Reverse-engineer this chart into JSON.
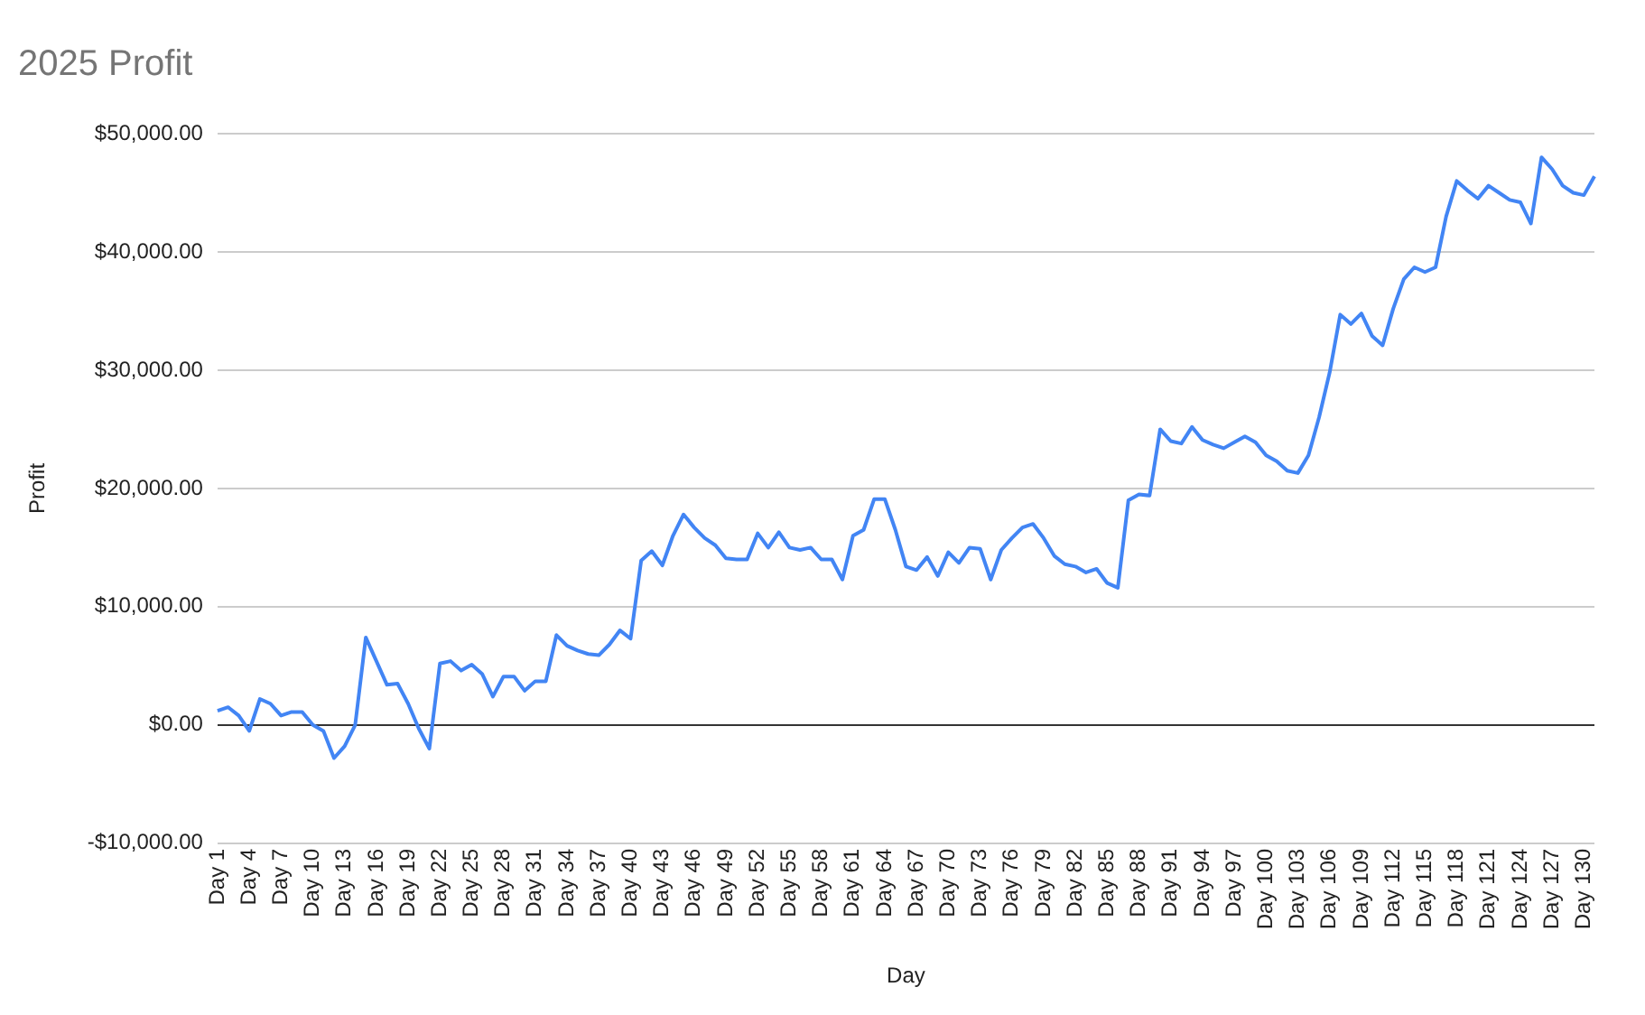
{
  "chart_data": {
    "type": "line",
    "title": "2025 Profit",
    "xlabel": "Day",
    "ylabel": "Profit",
    "categories": [
      "Day 1",
      null,
      null,
      "Day 4",
      null,
      null,
      "Day 7",
      null,
      null,
      "Day 10",
      null,
      null,
      "Day 13",
      null,
      null,
      "Day 16",
      null,
      null,
      "Day 19",
      null,
      null,
      "Day 22",
      null,
      null,
      "Day 25",
      null,
      null,
      "Day 28",
      null,
      null,
      "Day 31",
      null,
      null,
      "Day 34",
      null,
      null,
      "Day 37",
      null,
      null,
      "Day 40",
      null,
      null,
      "Day 43",
      null,
      null,
      "Day 46",
      null,
      null,
      "Day 49",
      null,
      null,
      "Day 52",
      null,
      null,
      "Day 55",
      null,
      null,
      "Day 58",
      null,
      null,
      "Day 61",
      null,
      null,
      "Day 64",
      null,
      null,
      "Day 67",
      null,
      null,
      "Day 70",
      null,
      null,
      "Day 73",
      null,
      null,
      "Day 76",
      null,
      null,
      "Day 79",
      null,
      null,
      "Day 82",
      null,
      null,
      "Day 85",
      null,
      null,
      "Day 88",
      null,
      null,
      "Day 91",
      null,
      null,
      "Day 94",
      null,
      null,
      "Day 97",
      null,
      null,
      "Day 100",
      null,
      null,
      "Day 103",
      null,
      null,
      "Day 106",
      null,
      null,
      "Day 109",
      null,
      null,
      "Day 112",
      null,
      null,
      "Day 115",
      null,
      null,
      "Day 118",
      null,
      null,
      "Day 121",
      null,
      null,
      "Day 124",
      null,
      null,
      "Day 127",
      null,
      null,
      "Day 130",
      null
    ],
    "series": [
      {
        "color": "#4285f4",
        "values": [
          1200,
          1500,
          800,
          -500,
          2200,
          1800,
          800,
          1100,
          1100,
          0,
          -500,
          -2800,
          -1800,
          0,
          7400,
          5400,
          3400,
          3500,
          1800,
          -300,
          -2000,
          5200,
          5400,
          4600,
          5100,
          4300,
          2400,
          4100,
          4100,
          2900,
          3700,
          3700,
          7600,
          6700,
          6300,
          6000,
          5900,
          6800,
          8000,
          7300,
          13900,
          14700,
          13500,
          16000,
          17800,
          16700,
          15800,
          15200,
          14100,
          14000,
          14000,
          16200,
          15000,
          16300,
          15000,
          14800,
          15000,
          14000,
          14000,
          12300,
          16000,
          16500,
          19100,
          19100,
          16500,
          13400,
          13100,
          14200,
          12600,
          14600,
          13700,
          15000,
          14900,
          12300,
          14800,
          15800,
          16700,
          17000,
          15800,
          14300,
          13600,
          13400,
          12900,
          13200,
          12000,
          11600,
          19000,
          19500,
          19400,
          25000,
          24000,
          23800,
          25200,
          24100,
          23700,
          23400,
          23900,
          24400,
          23900,
          22800,
          22300,
          21500,
          21300,
          22800,
          26000,
          29800,
          34700,
          33900,
          34800,
          32900,
          32100,
          35200,
          37700,
          38700,
          38300,
          38700,
          43000,
          46000,
          45200,
          44500,
          45600,
          45000,
          44400,
          44200,
          42400,
          48000,
          47000,
          45600,
          45000,
          44800,
          46400
        ]
      }
    ],
    "ylim": [
      -10000,
      50000
    ],
    "yticks": [
      {
        "value": -10000,
        "label": "-$10,000.00"
      },
      {
        "value": 0,
        "label": "$0.00"
      },
      {
        "value": 10000,
        "label": "$10,000.00"
      },
      {
        "value": 20000,
        "label": "$20,000.00"
      },
      {
        "value": 30000,
        "label": "$30,000.00"
      },
      {
        "value": 40000,
        "label": "$40,000.00"
      },
      {
        "value": 50000,
        "label": "$50,000.00"
      }
    ],
    "grid": "y",
    "legend": false,
    "marker": "none",
    "line_style": "solid"
  }
}
